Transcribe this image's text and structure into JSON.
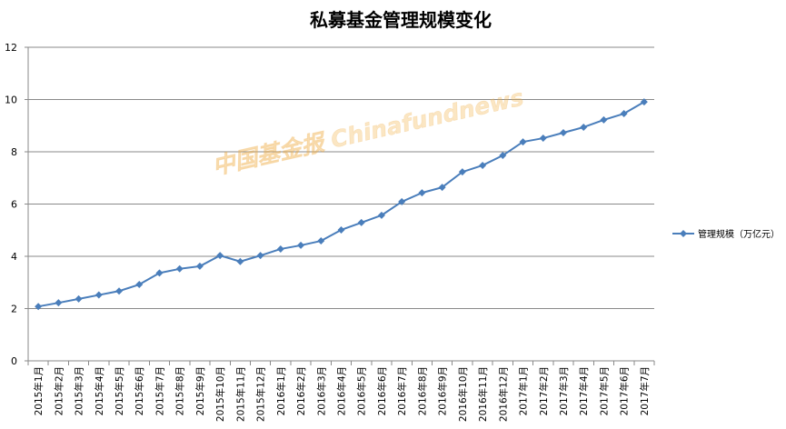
{
  "chart_data": {
    "type": "line",
    "title": "私募基金管理规模变化",
    "xlabel": "",
    "ylabel": "",
    "categories": [
      "2015年1月",
      "2015年2月",
      "2015年3月",
      "2015年4月",
      "2015年5月",
      "2015年6月",
      "2015年7月",
      "2015年8月",
      "2015年9月",
      "2015年10月",
      "2015年11月",
      "2015年12月",
      "2016年1月",
      "2016年2月",
      "2016年3月",
      "2016年4月",
      "2016年5月",
      "2016年6月",
      "2016年7月",
      "2016年8月",
      "2016年9月",
      "2016年10月",
      "2016年11月",
      "2016年12月",
      "2017年1月",
      "2017年2月",
      "2017年3月",
      "2017年4月",
      "2017年5月",
      "2017年6月",
      "2017年7月"
    ],
    "series": [
      {
        "name": "管理规模（万亿元）",
        "color": "#4a7ebb",
        "marker": "diamond",
        "values": [
          2.08,
          2.22,
          2.37,
          2.52,
          2.67,
          2.92,
          3.36,
          3.52,
          3.62,
          4.03,
          3.8,
          4.03,
          4.28,
          4.42,
          4.59,
          5.01,
          5.29,
          5.57,
          6.09,
          6.43,
          6.64,
          7.23,
          7.48,
          7.86,
          8.38,
          8.52,
          8.73,
          8.94,
          9.22,
          9.46,
          9.91
        ]
      }
    ],
    "ylim": [
      0,
      12
    ],
    "yticks": [
      0,
      2,
      4,
      6,
      8,
      10,
      12
    ],
    "grid": true,
    "legend": "right"
  },
  "watermark": {
    "text": "中国基金报 Chinafundnews",
    "color": "#f3b248"
  }
}
